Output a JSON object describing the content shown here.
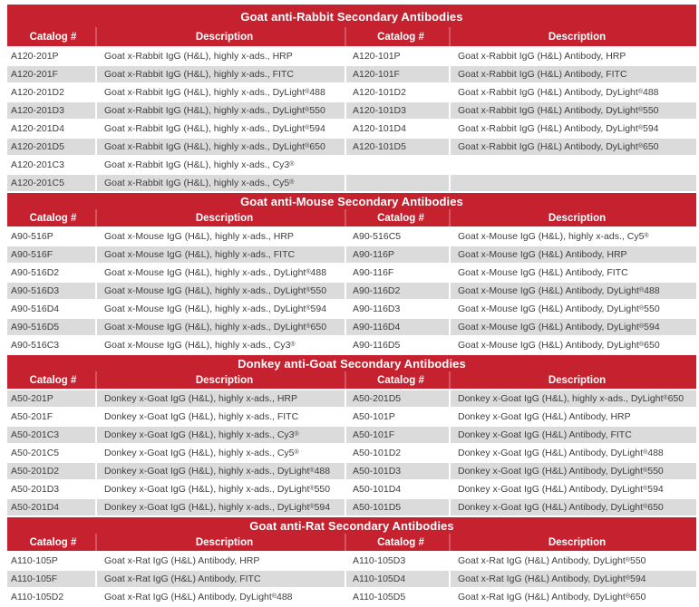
{
  "colors": {
    "header_red": "#c5212f",
    "row_gray": "#dbdbdb",
    "row_white": "#ffffff",
    "header_text": "#ffffff",
    "cell_text": "#3e3e3e"
  },
  "columns": {
    "catalog_header": "Catalog #",
    "description_header": "Description"
  },
  "sections": [
    {
      "title": "Goat anti-Rabbit Secondary Antibodies",
      "rows": [
        {
          "shaded": false,
          "cat1": "A120-201P",
          "desc1": "Goat x-Rabbit IgG (H&L), highly x-ads., HRP",
          "cat2": "A120-101P",
          "desc2": "Goat x-Rabbit IgG (H&L) Antibody, HRP"
        },
        {
          "shaded": true,
          "cat1": "A120-201F",
          "desc1": "Goat x-Rabbit IgG (H&L), highly x-ads., FITC",
          "cat2": "A120-101F",
          "desc2": "Goat x-Rabbit IgG (H&L) Antibody, FITC"
        },
        {
          "shaded": false,
          "cat1": "A120-201D2",
          "desc1": "Goat x-Rabbit IgG (H&L), highly x-ads., DyLight® 488",
          "cat2": "A120-101D2",
          "desc2": "Goat x-Rabbit IgG (H&L) Antibody, DyLight® 488"
        },
        {
          "shaded": true,
          "cat1": "A120-201D3",
          "desc1": "Goat x-Rabbit IgG (H&L), highly x-ads., DyLight® 550",
          "cat2": "A120-101D3",
          "desc2": "Goat x-Rabbit IgG (H&L) Antibody, DyLight® 550"
        },
        {
          "shaded": false,
          "cat1": "A120-201D4",
          "desc1": "Goat x-Rabbit IgG (H&L), highly x-ads., DyLight® 594",
          "cat2": "A120-101D4",
          "desc2": "Goat x-Rabbit IgG (H&L) Antibody, DyLight® 594"
        },
        {
          "shaded": true,
          "cat1": "A120-201D5",
          "desc1": "Goat x-Rabbit IgG (H&L), highly x-ads., DyLight® 650",
          "cat2": "A120-101D5",
          "desc2": "Goat x-Rabbit IgG (H&L) Antibody, DyLight® 650"
        },
        {
          "shaded": false,
          "cat1": "A120-201C3",
          "desc1": "Goat x-Rabbit IgG (H&L), highly x-ads., Cy3®",
          "cat2": "",
          "desc2": ""
        },
        {
          "shaded": true,
          "cat1": "A120-201C5",
          "desc1": "Goat x-Rabbit IgG (H&L), highly x-ads., Cy5®",
          "cat2": "",
          "desc2": ""
        }
      ]
    },
    {
      "title": "Goat anti-Mouse Secondary Antibodies",
      "rows": [
        {
          "shaded": false,
          "cat1": "A90-516P",
          "desc1": "Goat x-Mouse IgG (H&L), highly x-ads., HRP",
          "cat2": "A90-516C5",
          "desc2": "Goat x-Mouse IgG (H&L), highly x-ads., Cy5®"
        },
        {
          "shaded": true,
          "cat1": "A90-516F",
          "desc1": "Goat x-Mouse IgG (H&L), highly x-ads., FITC",
          "cat2": "A90-116P",
          "desc2": "Goat x-Mouse IgG (H&L) Antibody, HRP"
        },
        {
          "shaded": false,
          "cat1": "A90-516D2",
          "desc1": "Goat x-Mouse IgG (H&L), highly x-ads., DyLight® 488",
          "cat2": "A90-116F",
          "desc2": "Goat x-Mouse IgG (H&L) Antibody, FITC"
        },
        {
          "shaded": true,
          "cat1": "A90-516D3",
          "desc1": "Goat x-Mouse IgG (H&L), highly x-ads., DyLight® 550",
          "cat2": "A90-116D2",
          "desc2": "Goat x-Mouse IgG (H&L) Antibody, DyLight® 488"
        },
        {
          "shaded": false,
          "cat1": "A90-516D4",
          "desc1": "Goat x-Mouse IgG (H&L), highly x-ads., DyLight® 594",
          "cat2": "A90-116D3",
          "desc2": "Goat x-Mouse IgG (H&L) Antibody, DyLight® 550"
        },
        {
          "shaded": true,
          "cat1": "A90-516D5",
          "desc1": "Goat x-Mouse IgG (H&L), highly x-ads., DyLight® 650",
          "cat2": "A90-116D4",
          "desc2": "Goat x-Mouse IgG (H&L) Antibody, DyLight® 594"
        },
        {
          "shaded": false,
          "cat1": "A90-516C3",
          "desc1": "Goat x-Mouse IgG (H&L), highly x-ads., Cy3®",
          "cat2": "A90-116D5",
          "desc2": "Goat x-Mouse IgG (H&L) Antibody, DyLight® 650"
        }
      ]
    },
    {
      "title": "Donkey anti-Goat Secondary Antibodies",
      "rows": [
        {
          "shaded": true,
          "cat1": "A50-201P",
          "desc1": "Donkey x-Goat IgG (H&L), highly x-ads., HRP",
          "cat2": "A50-201D5",
          "desc2": "Donkey x-Goat IgG (H&L), highly x-ads., DyLight® 650"
        },
        {
          "shaded": false,
          "cat1": "A50-201F",
          "desc1": "Donkey x-Goat IgG (H&L), highly x-ads., FITC",
          "cat2": "A50-101P",
          "desc2": "Donkey x-Goat IgG (H&L) Antibody, HRP"
        },
        {
          "shaded": true,
          "cat1": "A50-201C3",
          "desc1": "Donkey x-Goat IgG (H&L), highly x-ads., Cy3®",
          "cat2": "A50-101F",
          "desc2": "Donkey x-Goat IgG (H&L) Antibody, FITC"
        },
        {
          "shaded": false,
          "cat1": "A50-201C5",
          "desc1": "Donkey x-Goat IgG (H&L), highly x-ads., Cy5®",
          "cat2": "A50-101D2",
          "desc2": "Donkey x-Goat IgG (H&L) Antibody, DyLight® 488"
        },
        {
          "shaded": true,
          "cat1": "A50-201D2",
          "desc1": "Donkey x-Goat IgG (H&L), highly x-ads., DyLight® 488",
          "cat2": "A50-101D3",
          "desc2": "Donkey x-Goat IgG (H&L) Antibody, DyLight® 550"
        },
        {
          "shaded": false,
          "cat1": "A50-201D3",
          "desc1": "Donkey x-Goat IgG (H&L), highly x-ads., DyLight® 550",
          "cat2": "A50-101D4",
          "desc2": "Donkey x-Goat IgG (H&L) Antibody, DyLight® 594"
        },
        {
          "shaded": true,
          "cat1": "A50-201D4",
          "desc1": "Donkey x-Goat IgG (H&L), highly x-ads., DyLight® 594",
          "cat2": "A50-101D5",
          "desc2": "Donkey x-Goat IgG (H&L) Antibody, DyLight® 650"
        }
      ]
    },
    {
      "title": "Goat anti-Rat Secondary Antibodies",
      "rows": [
        {
          "shaded": false,
          "cat1": "A110-105P",
          "desc1": "Goat x-Rat IgG (H&L) Antibody, HRP",
          "cat2": "A110-105D3",
          "desc2": "Goat x-Rat IgG (H&L) Antibody, DyLight® 550"
        },
        {
          "shaded": true,
          "cat1": "A110-105F",
          "desc1": "Goat x-Rat IgG (H&L) Antibody, FITC",
          "cat2": "A110-105D4",
          "desc2": "Goat x-Rat IgG (H&L) Antibody, DyLight® 594"
        },
        {
          "shaded": false,
          "cat1": "A110-105D2",
          "desc1": "Goat x-Rat IgG (H&L) Antibody, DyLight® 488",
          "cat2": "A110-105D5",
          "desc2": "Goat x-Rat IgG (H&L) Antibody, DyLight® 650"
        }
      ]
    }
  ]
}
